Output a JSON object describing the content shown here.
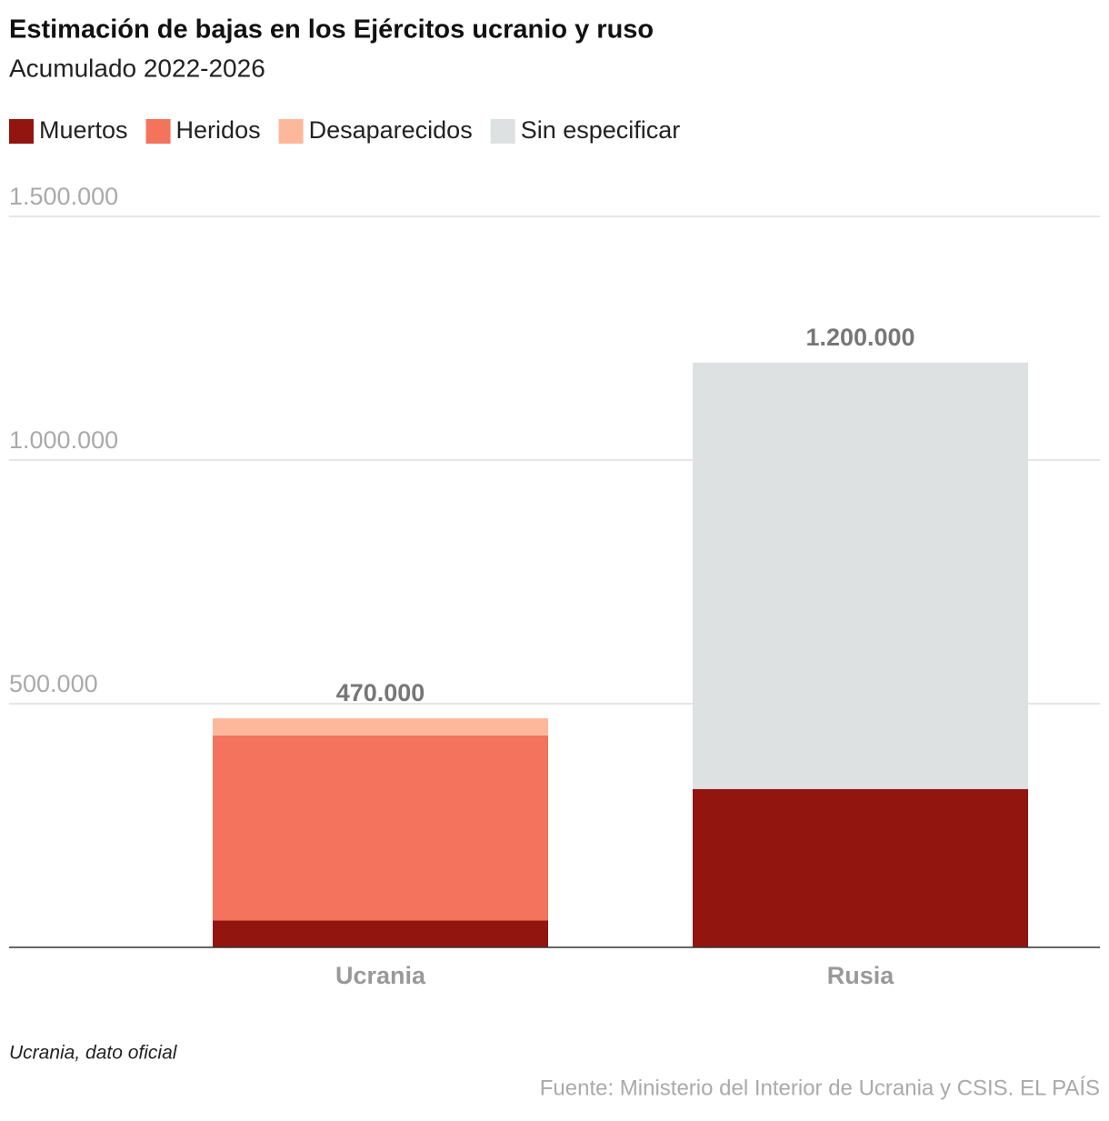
{
  "chart_data": {
    "type": "stacked-bar",
    "title": "Estimación de bajas en los Ejércitos ucranio y ruso",
    "subtitle": "Acumulado 2022-2026",
    "categories": [
      "Ucrania",
      "Rusia"
    ],
    "series": [
      {
        "name": "Muertos",
        "color": "#931510",
        "values": [
          55000,
          325000
        ]
      },
      {
        "name": "Heridos",
        "color": "#f3735c",
        "values": [
          380000,
          null
        ]
      },
      {
        "name": "Desaparecidos",
        "color": "#fdb89c",
        "values": [
          35000,
          null
        ]
      },
      {
        "name": "Sin especificar",
        "color": "#dee1e2",
        "values": [
          null,
          875000
        ]
      }
    ],
    "totals": {
      "values": [
        470000,
        1200000
      ],
      "value_labels": [
        "470.000",
        "1.200.000"
      ]
    },
    "ylim": [
      0,
      1500000
    ],
    "yticks": [
      {
        "value": 500000,
        "label": "500.000"
      },
      {
        "value": 1000000,
        "label": "1.000.000"
      },
      {
        "value": 1500000,
        "label": "1.500.000"
      }
    ],
    "grid": true,
    "note": "Ucrania, dato oficial",
    "source": "Fuente: Ministerio del Interior de Ucrania y CSIS. EL PAÍS"
  }
}
